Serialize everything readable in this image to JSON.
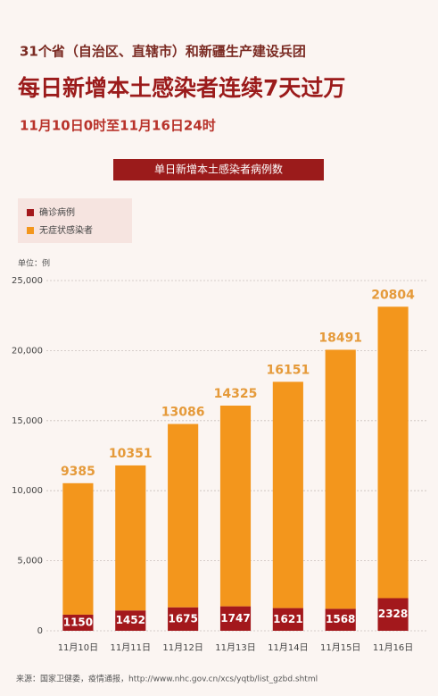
{
  "chart_data": {
    "type": "stacked-bar",
    "pretitle": "31个省（自治区、直辖市）和新疆生产建设兵团",
    "title": "每日新增本土感染者连续7天过万",
    "subtitle": "11月10日0时至11月16日24时",
    "banner": "单日新增本土感染者病例数",
    "unit_label": "单位：例",
    "source": "来源：国家卫健委，疫情通报，http://www.nhc.gov.cn/xcs/yqtb/list_gzbd.shtml",
    "categories": [
      "11月10日",
      "11月11日",
      "11月12日",
      "11月13日",
      "11月14日",
      "11月15日",
      "11月16日"
    ],
    "series": [
      {
        "name": "确诊病例",
        "color": "#a3181c",
        "values": [
          1150,
          1452,
          1675,
          1747,
          1621,
          1568,
          2328
        ]
      },
      {
        "name": "无症状感染者",
        "color": "#f3961c",
        "values": [
          9385,
          10351,
          13086,
          14325,
          16151,
          18491,
          20804
        ]
      }
    ],
    "ylim": [
      0,
      25000
    ],
    "yticks": [
      0,
      {
        "value": 5000,
        "label": "5,000"
      },
      {
        "value": 10000,
        "label": "10,000"
      },
      {
        "value": 15000,
        "label": "15,000"
      },
      {
        "value": 20000,
        "label": "20,000"
      },
      {
        "value": 25000,
        "label": "25,000"
      }
    ],
    "grid": true,
    "legend": "top-left"
  }
}
